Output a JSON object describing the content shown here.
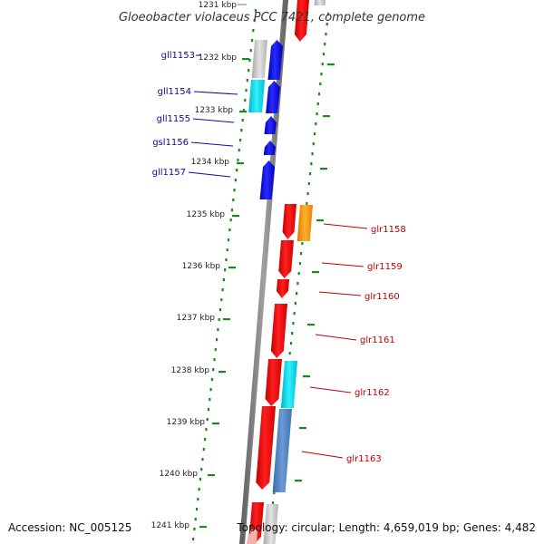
{
  "title": "Gloeobacter violaceus PCC 7421, complete genome",
  "accession": "Accession: NC_005125",
  "topology": "Topology: circular; Length: 4,659,019 bp; Genes: 4,482",
  "position_labels": [
    "1231 kbp",
    "1232 kbp",
    "1233 kbp",
    "1234 kbp",
    "1235 kbp",
    "1236 kbp",
    "1237 kbp",
    "1238 kbp",
    "1239 kbp",
    "1240 kbp",
    "1241 kbp"
  ],
  "genes_reverse": [
    {
      "name": "gll1153"
    },
    {
      "name": "gll1154"
    },
    {
      "name": "gll1155"
    },
    {
      "name": "gsl1156"
    },
    {
      "name": "gll1157"
    }
  ],
  "genes_forward": [
    {
      "name": "glr1158"
    },
    {
      "name": "glr1159"
    },
    {
      "name": "glr1160"
    },
    {
      "name": "glr1161"
    },
    {
      "name": "glr1162"
    },
    {
      "name": "glr1163"
    }
  ],
  "colors": {
    "forward_strand": "#ff0000",
    "reverse_strand": "#0000ee",
    "cds_cyan": "#00e0f0",
    "cds_orange": "#ff9900",
    "cds_steelblue": "#4a86c8",
    "cds_grey": "#c8c8c8",
    "backbone": "#7a7a7a",
    "tick_green": "#1a8a1a",
    "left_label": "#0a0aa8",
    "right_label": "#c00000"
  }
}
